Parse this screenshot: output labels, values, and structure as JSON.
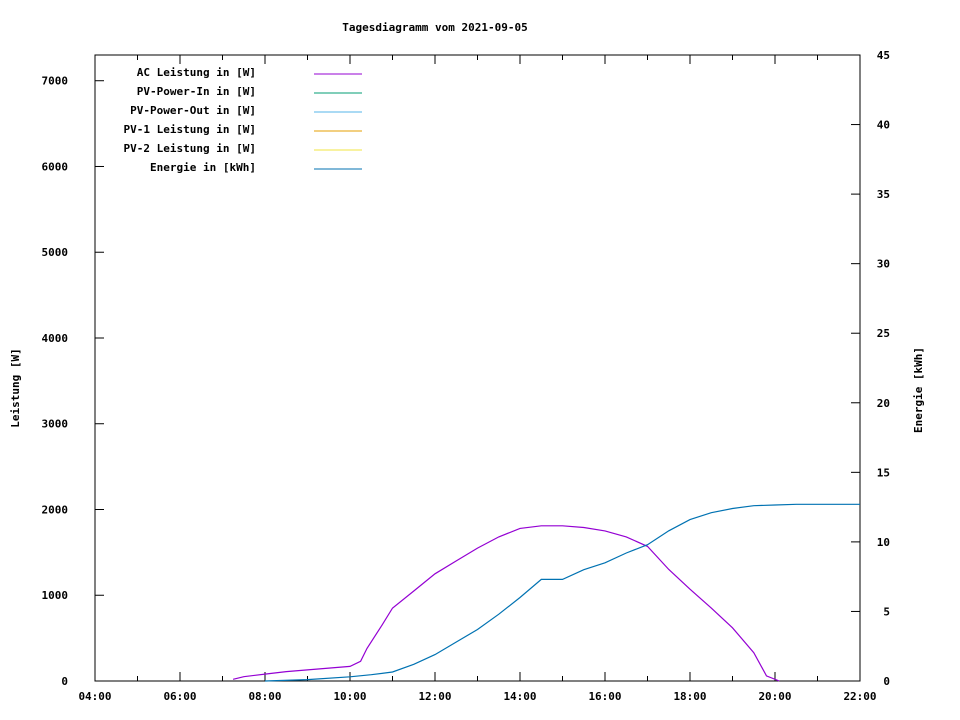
{
  "chart_data": {
    "type": "line",
    "title": "Tagesdiagramm vom 2021-09-05",
    "xlabel": "",
    "ylabel": "Leistung [W]",
    "y2label": "Energie [kWh]",
    "xlim": [
      4,
      22
    ],
    "ylim": [
      0,
      7300
    ],
    "y2lim": [
      0,
      45
    ],
    "grid": false,
    "legend_placement": "top-left",
    "x_ticks": [
      "04:00",
      "06:00",
      "08:00",
      "10:00",
      "12:00",
      "14:00",
      "16:00",
      "18:00",
      "20:00",
      "22:00"
    ],
    "y_ticks": [
      "0",
      "1000",
      "2000",
      "3000",
      "4000",
      "5000",
      "6000",
      "7000"
    ],
    "y2_ticks": [
      "0",
      "5",
      "10",
      "15",
      "20",
      "25",
      "30",
      "35",
      "40",
      "45"
    ],
    "series": [
      {
        "name": "AC Leistung in [W]",
        "axis": "y",
        "color": "#9400d3",
        "x": [
          7.25,
          7.5,
          8,
          8.5,
          9,
          9.5,
          10,
          10.25,
          10.4,
          10.75,
          11,
          11.5,
          12,
          12.5,
          13,
          13.5,
          14,
          14.5,
          15,
          15.5,
          16,
          16.5,
          17,
          17.5,
          18,
          18.5,
          19,
          19.5,
          19.8,
          20.1
        ],
        "y": [
          20,
          50,
          80,
          110,
          130,
          150,
          170,
          230,
          380,
          650,
          850,
          1050,
          1250,
          1400,
          1550,
          1680,
          1780,
          1810,
          1810,
          1790,
          1750,
          1680,
          1570,
          1300,
          1070,
          850,
          620,
          330,
          60,
          0
        ]
      },
      {
        "name": "PV-Power-In in [W]",
        "axis": "y",
        "color": "#009e73",
        "x": [],
        "y": []
      },
      {
        "name": "PV-Power-Out in [W]",
        "axis": "y",
        "color": "#56b4e9",
        "x": [],
        "y": []
      },
      {
        "name": "PV-1 Leistung in [W]",
        "axis": "y",
        "color": "#e69f00",
        "x": [],
        "y": []
      },
      {
        "name": "PV-2 Leistung in [W]",
        "axis": "y",
        "color": "#f0e442",
        "x": [],
        "y": []
      },
      {
        "name": "Energie in [kWh]",
        "axis": "y2",
        "color": "#0072b2",
        "x": [
          8,
          9,
          10,
          10.5,
          11,
          11.5,
          12,
          12.5,
          13,
          13.5,
          14,
          14.5,
          15,
          15.5,
          16,
          16.5,
          17,
          17.5,
          18,
          18.5,
          19,
          19.5,
          20,
          20.5,
          22
        ],
        "y": [
          0,
          0.1,
          0.3,
          0.45,
          0.65,
          1.2,
          1.9,
          2.8,
          3.7,
          4.8,
          6.0,
          7.3,
          7.3,
          8.0,
          8.5,
          9.2,
          9.8,
          10.8,
          11.6,
          12.1,
          12.4,
          12.6,
          12.65,
          12.7,
          12.7
        ]
      }
    ]
  }
}
